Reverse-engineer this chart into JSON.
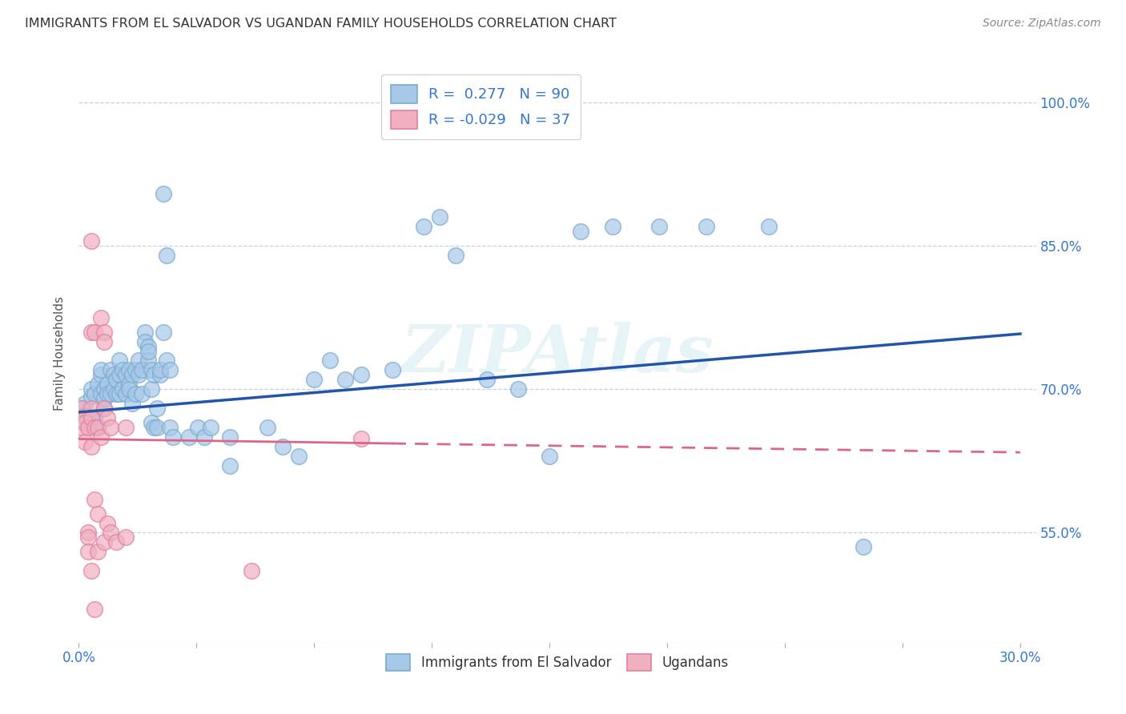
{
  "title": "IMMIGRANTS FROM EL SALVADOR VS UGANDAN FAMILY HOUSEHOLDS CORRELATION CHART",
  "source": "Source: ZipAtlas.com",
  "ylabel": "Family Households",
  "ytick_labels": [
    "55.0%",
    "70.0%",
    "85.0%",
    "100.0%"
  ],
  "ytick_values": [
    0.55,
    0.7,
    0.85,
    1.0
  ],
  "xlim": [
    0.0,
    0.305
  ],
  "ylim": [
    0.435,
    1.04
  ],
  "watermark": "ZIPAtlas",
  "blue_color": "#A8C8E8",
  "pink_color": "#F0B0C0",
  "blue_edge_color": "#7AAAD0",
  "pink_edge_color": "#E080A0",
  "blue_line_color": "#2255AA",
  "pink_line_color": "#DD6688",
  "blue_scatter": [
    [
      0.001,
      0.68
    ],
    [
      0.002,
      0.685
    ],
    [
      0.003,
      0.665
    ],
    [
      0.003,
      0.672
    ],
    [
      0.004,
      0.693
    ],
    [
      0.004,
      0.7
    ],
    [
      0.005,
      0.695
    ],
    [
      0.005,
      0.67
    ],
    [
      0.006,
      0.705
    ],
    [
      0.006,
      0.66
    ],
    [
      0.007,
      0.695
    ],
    [
      0.007,
      0.715
    ],
    [
      0.007,
      0.72
    ],
    [
      0.008,
      0.7
    ],
    [
      0.008,
      0.68
    ],
    [
      0.008,
      0.69
    ],
    [
      0.009,
      0.705
    ],
    [
      0.009,
      0.695
    ],
    [
      0.01,
      0.695
    ],
    [
      0.01,
      0.72
    ],
    [
      0.011,
      0.7
    ],
    [
      0.011,
      0.715
    ],
    [
      0.012,
      0.695
    ],
    [
      0.012,
      0.71
    ],
    [
      0.013,
      0.715
    ],
    [
      0.013,
      0.73
    ],
    [
      0.013,
      0.695
    ],
    [
      0.014,
      0.7
    ],
    [
      0.014,
      0.72
    ],
    [
      0.015,
      0.695
    ],
    [
      0.015,
      0.715
    ],
    [
      0.016,
      0.72
    ],
    [
      0.016,
      0.705
    ],
    [
      0.016,
      0.7
    ],
    [
      0.017,
      0.715
    ],
    [
      0.017,
      0.685
    ],
    [
      0.018,
      0.695
    ],
    [
      0.018,
      0.72
    ],
    [
      0.019,
      0.73
    ],
    [
      0.019,
      0.715
    ],
    [
      0.02,
      0.72
    ],
    [
      0.02,
      0.695
    ],
    [
      0.021,
      0.76
    ],
    [
      0.021,
      0.75
    ],
    [
      0.022,
      0.745
    ],
    [
      0.022,
      0.73
    ],
    [
      0.022,
      0.74
    ],
    [
      0.023,
      0.72
    ],
    [
      0.023,
      0.7
    ],
    [
      0.023,
      0.665
    ],
    [
      0.024,
      0.715
    ],
    [
      0.024,
      0.66
    ],
    [
      0.025,
      0.68
    ],
    [
      0.025,
      0.66
    ],
    [
      0.026,
      0.715
    ],
    [
      0.026,
      0.72
    ],
    [
      0.027,
      0.76
    ],
    [
      0.027,
      0.905
    ],
    [
      0.028,
      0.84
    ],
    [
      0.028,
      0.73
    ],
    [
      0.029,
      0.72
    ],
    [
      0.029,
      0.66
    ],
    [
      0.03,
      0.65
    ],
    [
      0.035,
      0.65
    ],
    [
      0.038,
      0.66
    ],
    [
      0.04,
      0.65
    ],
    [
      0.042,
      0.66
    ],
    [
      0.048,
      0.65
    ],
    [
      0.048,
      0.62
    ],
    [
      0.06,
      0.66
    ],
    [
      0.065,
      0.64
    ],
    [
      0.07,
      0.63
    ],
    [
      0.075,
      0.71
    ],
    [
      0.08,
      0.73
    ],
    [
      0.085,
      0.71
    ],
    [
      0.09,
      0.715
    ],
    [
      0.1,
      0.72
    ],
    [
      0.11,
      0.87
    ],
    [
      0.115,
      0.88
    ],
    [
      0.12,
      0.84
    ],
    [
      0.13,
      0.71
    ],
    [
      0.14,
      0.7
    ],
    [
      0.15,
      0.63
    ],
    [
      0.16,
      0.865
    ],
    [
      0.17,
      0.87
    ],
    [
      0.185,
      0.87
    ],
    [
      0.2,
      0.87
    ],
    [
      0.22,
      0.87
    ],
    [
      0.25,
      0.535
    ]
  ],
  "pink_scatter": [
    [
      0.001,
      0.68
    ],
    [
      0.001,
      0.66
    ],
    [
      0.002,
      0.672
    ],
    [
      0.002,
      0.665
    ],
    [
      0.002,
      0.645
    ],
    [
      0.003,
      0.66
    ],
    [
      0.003,
      0.55
    ],
    [
      0.003,
      0.545
    ],
    [
      0.003,
      0.53
    ],
    [
      0.004,
      0.855
    ],
    [
      0.004,
      0.76
    ],
    [
      0.004,
      0.68
    ],
    [
      0.004,
      0.67
    ],
    [
      0.004,
      0.64
    ],
    [
      0.004,
      0.51
    ],
    [
      0.005,
      0.76
    ],
    [
      0.005,
      0.66
    ],
    [
      0.005,
      0.585
    ],
    [
      0.005,
      0.47
    ],
    [
      0.006,
      0.66
    ],
    [
      0.006,
      0.57
    ],
    [
      0.006,
      0.53
    ],
    [
      0.007,
      0.775
    ],
    [
      0.007,
      0.65
    ],
    [
      0.008,
      0.76
    ],
    [
      0.008,
      0.75
    ],
    [
      0.008,
      0.68
    ],
    [
      0.008,
      0.54
    ],
    [
      0.009,
      0.67
    ],
    [
      0.009,
      0.56
    ],
    [
      0.01,
      0.66
    ],
    [
      0.01,
      0.55
    ],
    [
      0.012,
      0.54
    ],
    [
      0.015,
      0.66
    ],
    [
      0.015,
      0.545
    ],
    [
      0.055,
      0.51
    ],
    [
      0.09,
      0.648
    ]
  ],
  "blue_trendline": [
    [
      0.0,
      0.676
    ],
    [
      0.3,
      0.758
    ]
  ],
  "pink_trendline": [
    [
      0.0,
      0.648
    ],
    [
      0.3,
      0.634
    ]
  ]
}
